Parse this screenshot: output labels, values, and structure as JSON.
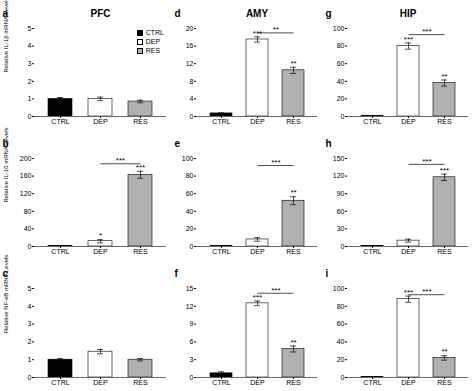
{
  "chart_data": [
    {
      "type": "bar",
      "title": "PFC",
      "subtitle": "a",
      "ylabel": "Relative IL-1β mRNA Levels",
      "categories": [
        "CTRL",
        "DEP",
        "RES"
      ],
      "values": [
        1.0,
        1.0,
        0.85
      ],
      "errors": [
        0.08,
        0.1,
        0.07
      ],
      "colors": [
        "black",
        "white",
        "#b0b0b0"
      ],
      "ylim": [
        0,
        5
      ],
      "yticks": [
        0,
        1,
        2,
        3,
        4,
        5
      ],
      "legend": "upper right",
      "annotations": []
    },
    {
      "type": "bar",
      "subtitle": "b",
      "ylabel": "Relative IL-10 mRNA Levels",
      "categories": [
        "CTRL",
        "DEP",
        "RES"
      ],
      "values": [
        1.5,
        12.0,
        163.0
      ],
      "errors": [
        0.4,
        3.5,
        8.0
      ],
      "colors": [
        "black",
        "white",
        "#b0b0b0"
      ],
      "ylim": [
        0,
        200
      ],
      "yticks": [
        0,
        40,
        80,
        120,
        160,
        200
      ],
      "annotations": [
        {
          "x1": "DEP",
          "x2": "RES",
          "y": 188,
          "text": "***"
        },
        {
          "x": "DEP",
          "text": "*"
        },
        {
          "x": "RES",
          "text": "***"
        }
      ]
    },
    {
      "type": "bar",
      "subtitle": "c",
      "ylabel": "Relative NF-κB mRNA Levels",
      "categories": [
        "CTRL",
        "DEP",
        "RES"
      ],
      "values": [
        1.0,
        1.45,
        1.0
      ],
      "errors": [
        0.07,
        0.12,
        0.07
      ],
      "colors": [
        "black",
        "white",
        "#b0b0b0"
      ],
      "ylim": [
        0,
        5
      ],
      "yticks": [
        0,
        1,
        2,
        3,
        4,
        5
      ],
      "annotations": []
    },
    {
      "type": "bar",
      "title": "AMY",
      "subtitle": "d",
      "categories": [
        "CTRL",
        "DEP",
        "RES"
      ],
      "values": [
        0.7,
        17.5,
        10.5
      ],
      "errors": [
        0.12,
        0.6,
        0.7
      ],
      "colors": [
        "black",
        "white",
        "#b0b0b0"
      ],
      "ylim": [
        0,
        20
      ],
      "yticks": [
        0,
        4,
        8,
        12,
        16,
        20
      ],
      "annotations": [
        {
          "x1": "DEP",
          "x2": "RES",
          "y": 19.0,
          "text": "**"
        },
        {
          "x": "DEP",
          "text": "***"
        },
        {
          "x": "RES",
          "text": "**"
        }
      ]
    },
    {
      "type": "bar",
      "subtitle": "e",
      "categories": [
        "CTRL",
        "DEP",
        "RES"
      ],
      "values": [
        0.8,
        8.0,
        52.0
      ],
      "errors": [
        0.2,
        2.0,
        4.5
      ],
      "colors": [
        "black",
        "white",
        "#b0b0b0"
      ],
      "ylim": [
        0,
        100
      ],
      "yticks": [
        0,
        20,
        40,
        60,
        80,
        100
      ],
      "annotations": [
        {
          "x1": "DEP",
          "x2": "RES",
          "y": 92,
          "text": "***"
        },
        {
          "x": "RES",
          "text": "**"
        }
      ]
    },
    {
      "type": "bar",
      "subtitle": "f",
      "categories": [
        "CTRL",
        "DEP",
        "RES"
      ],
      "values": [
        0.7,
        12.5,
        4.8
      ],
      "errors": [
        0.25,
        0.4,
        0.5
      ],
      "colors": [
        "black",
        "white",
        "#b0b0b0"
      ],
      "ylim": [
        0,
        15
      ],
      "yticks": [
        0,
        3,
        6,
        9,
        12,
        15
      ],
      "annotations": [
        {
          "x1": "DEP",
          "x2": "RES",
          "y": 14.2,
          "text": "***"
        },
        {
          "x": "DEP",
          "text": "***"
        },
        {
          "x": "RES",
          "text": "**"
        }
      ]
    },
    {
      "type": "bar",
      "title": "HIP",
      "subtitle": "g",
      "categories": [
        "CTRL",
        "DEP",
        "RES"
      ],
      "values": [
        0.8,
        80.0,
        38.0
      ],
      "errors": [
        0.3,
        3.5,
        3.5
      ],
      "colors": [
        "black",
        "white",
        "#b0b0b0"
      ],
      "ylim": [
        0,
        100
      ],
      "yticks": [
        0,
        20,
        40,
        60,
        80,
        100
      ],
      "annotations": [
        {
          "x1": "DEP",
          "x2": "RES",
          "y": 93,
          "text": "***"
        },
        {
          "x": "DEP",
          "text": "***"
        },
        {
          "x": "RES",
          "text": "**"
        }
      ]
    },
    {
      "type": "bar",
      "subtitle": "h",
      "categories": [
        "CTRL",
        "DEP",
        "RES"
      ],
      "values": [
        0.8,
        10.0,
        118.0
      ],
      "errors": [
        0.3,
        2.5,
        5.5
      ],
      "colors": [
        "black",
        "white",
        "#b0b0b0"
      ],
      "ylim": [
        0,
        150
      ],
      "yticks": [
        0,
        30,
        60,
        90,
        120,
        150
      ],
      "annotations": [
        {
          "x1": "DEP",
          "x2": "RES",
          "y": 140,
          "text": "***"
        },
        {
          "x": "RES",
          "text": "***"
        }
      ]
    },
    {
      "type": "bar",
      "subtitle": "i",
      "categories": [
        "CTRL",
        "DEP",
        "RES"
      ],
      "values": [
        0.8,
        88.0,
        22.0
      ],
      "errors": [
        0.3,
        3.5,
        2.5
      ],
      "colors": [
        "black",
        "white",
        "#b0b0b0"
      ],
      "ylim": [
        0,
        100
      ],
      "yticks": [
        0,
        20,
        40,
        60,
        80,
        100
      ],
      "annotations": [
        {
          "x1": "DEP",
          "x2": "RES",
          "y": 93,
          "text": "***"
        },
        {
          "x": "DEP",
          "text": "***"
        },
        {
          "x": "RES",
          "text": "**"
        }
      ]
    }
  ]
}
